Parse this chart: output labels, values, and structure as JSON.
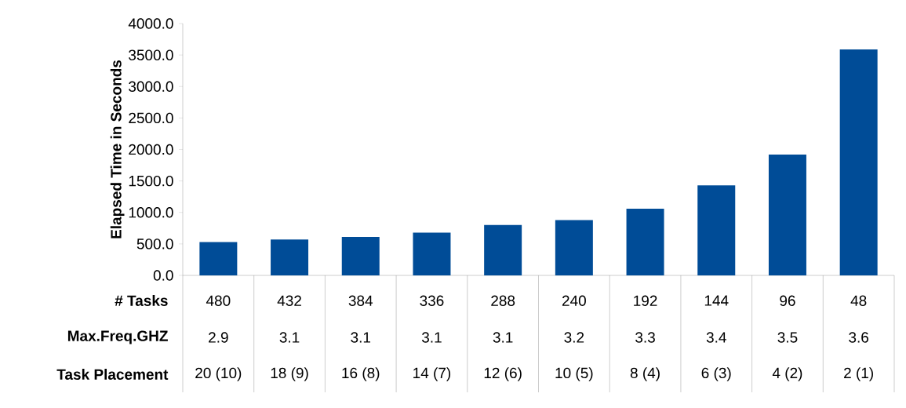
{
  "chart_data": {
    "type": "bar",
    "ylabel": "Elapsed Time in Seconds",
    "color": "#004c97",
    "categories": [
      "480",
      "432",
      "384",
      "336",
      "288",
      "240",
      "192",
      "144",
      "96",
      "48"
    ],
    "values": [
      530,
      570,
      610,
      680,
      800,
      880,
      1060,
      1430,
      1920,
      3590
    ],
    "ylim": [
      0,
      4000
    ],
    "yticks": [
      {
        "value": 0,
        "label": "0.0"
      },
      {
        "value": 500,
        "label": "500.0"
      },
      {
        "value": 1000,
        "label": "1000.0"
      },
      {
        "value": 1500,
        "label": "1500.0"
      },
      {
        "value": 2000,
        "label": "2000.0"
      },
      {
        "value": 2500,
        "label": "2500.0"
      },
      {
        "value": 3000,
        "label": "3000.0"
      },
      {
        "value": 3500,
        "label": "3500.0"
      },
      {
        "value": 4000,
        "label": "4000.0"
      }
    ],
    "grid": false,
    "annotations": [
      "# Tasks",
      "Max.Freq.GHZ",
      "Task Placement",
      "2.9",
      "3.1",
      "3.1",
      "3.1",
      "3.1",
      "3.2",
      "3.3",
      "3.4",
      "3.5",
      "3.6",
      "20 (10)",
      "18 (9)",
      "16 (8)",
      "14 (7)",
      "12 (6)",
      "10 (5)",
      "8 (4)",
      "6 (3)",
      "4 (2)",
      "2 (1)"
    ]
  }
}
